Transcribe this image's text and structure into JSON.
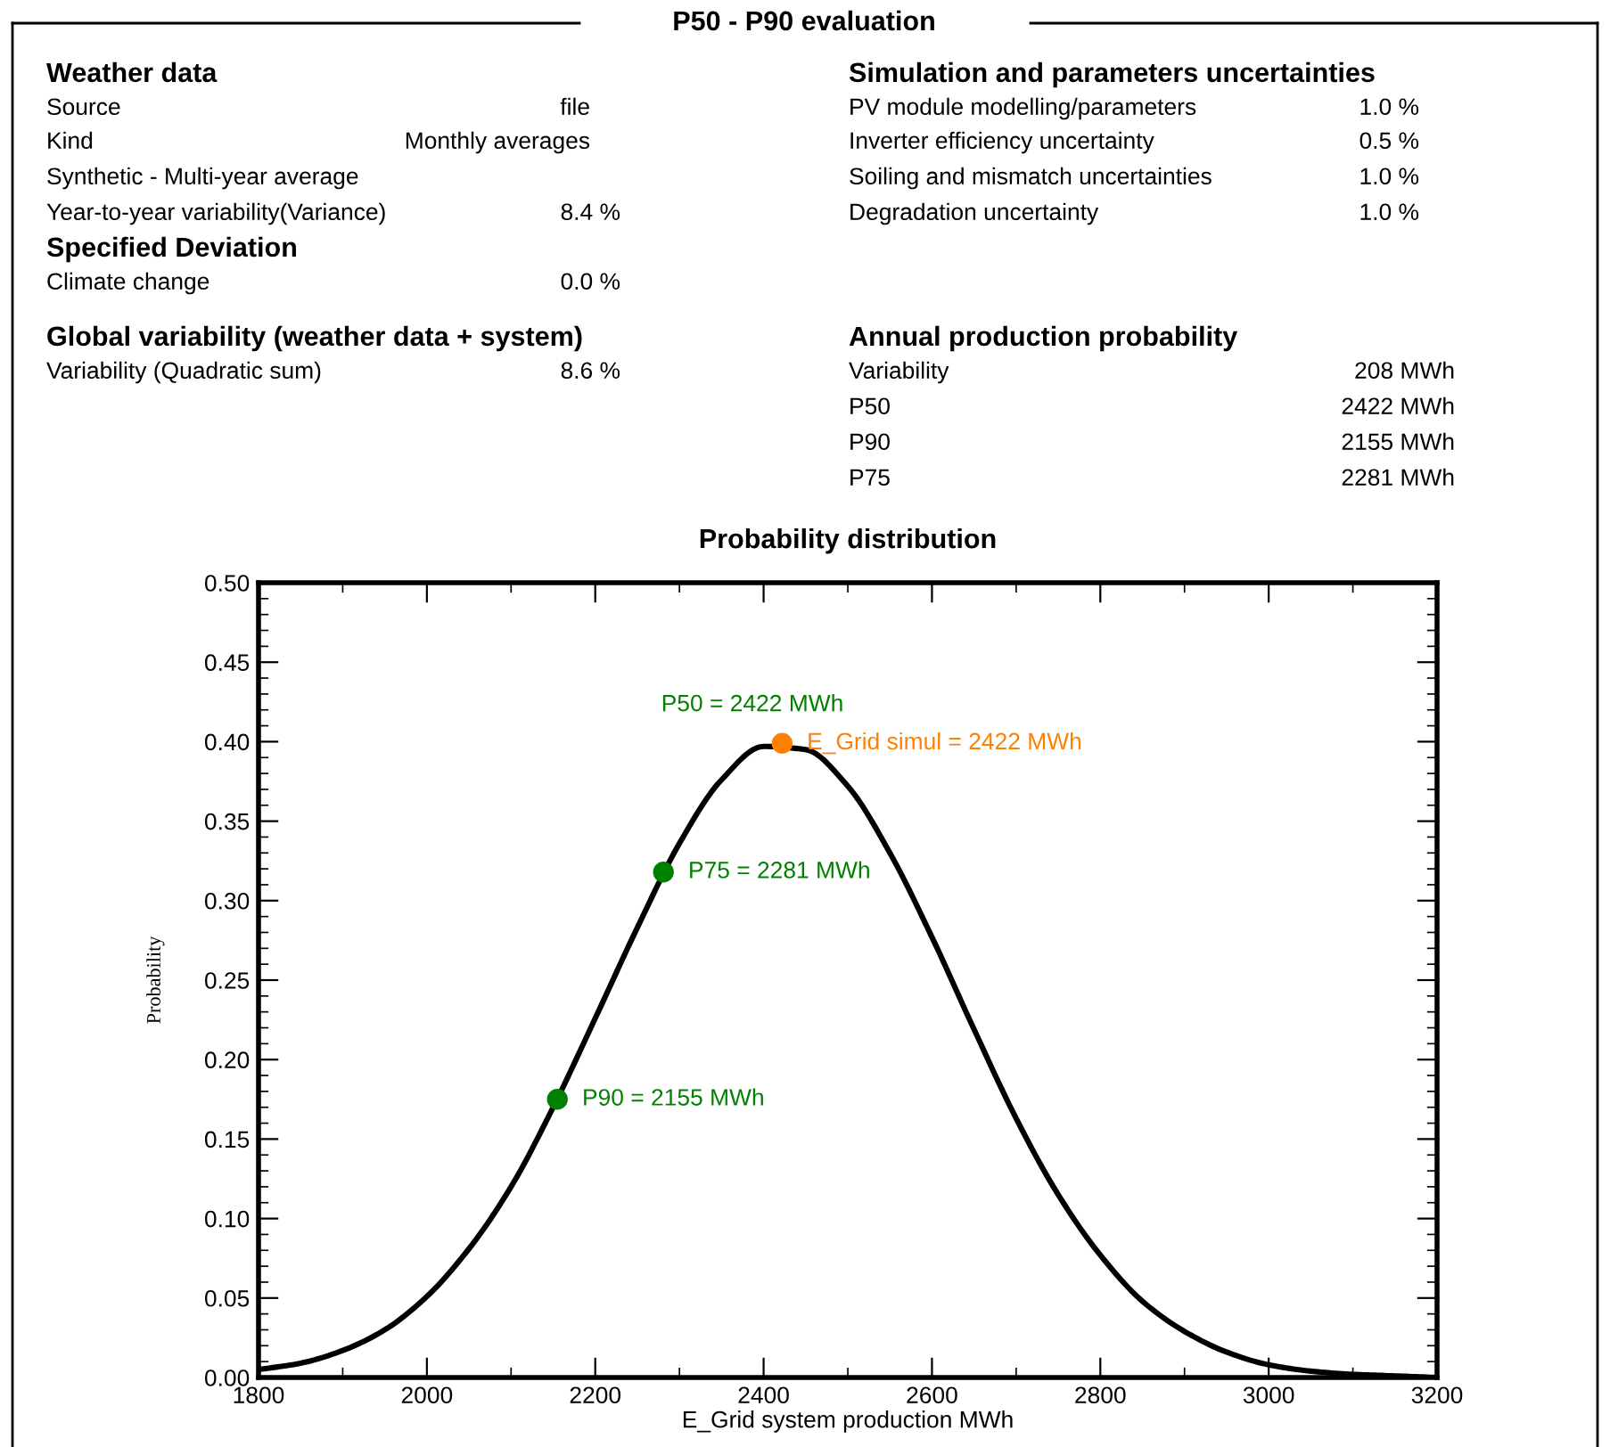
{
  "chart_data": [
    {
      "type": "other",
      "title": "P50 - P90 evaluation",
      "annotations": [
        "Weather data",
        "Source",
        "file",
        "Kind",
        "Monthly averages",
        "Synthetic - Multi-year average",
        "Year-to-year variability(Variance)",
        "8.4 %",
        "Specified Deviation",
        "Climate change",
        "0.0 %",
        "Global variability (weather data + system)",
        "Variability (Quadratic sum)",
        "8.6 %",
        "Simulation and parameters uncertainties",
        "PV module modelling/parameters",
        "1.0 %",
        "Inverter efficiency uncertainty",
        "0.5 %",
        "Soiling and mismatch uncertainties",
        "1.0 %",
        "Degradation uncertainty",
        "1.0 %",
        "Annual production probability",
        "Variability",
        "208 MWh",
        "P50",
        "2422 MWh",
        "P90",
        "2155 MWh",
        "P75",
        "2281 MWh"
      ]
    },
    {
      "type": "line",
      "title": "Probability distribution",
      "xlabel": "E_Grid system production MWh",
      "ylabel": "Probability",
      "xlim": [
        1800,
        3200
      ],
      "ylim": [
        0,
        0.5
      ],
      "xticks": [
        1800,
        {
          "value": 1900,
          "label": null
        },
        2000,
        {
          "value": 2100,
          "label": null
        },
        2200,
        {
          "value": 2300,
          "label": null
        },
        2400,
        {
          "value": 2500,
          "label": null
        },
        2600,
        {
          "value": 2700,
          "label": null
        },
        2800,
        {
          "value": 2900,
          "label": null
        },
        3000,
        {
          "value": 3100,
          "label": null
        },
        3200
      ],
      "yticks": [
        {
          "value": 0,
          "label": "0.00"
        },
        {
          "value": 0.01,
          "label": null
        },
        {
          "value": 0.02,
          "label": null
        },
        {
          "value": 0.03,
          "label": null
        },
        {
          "value": 0.04,
          "label": null
        },
        {
          "value": 0.05,
          "label": "0.05"
        },
        {
          "value": 0.06,
          "label": null
        },
        {
          "value": 0.07,
          "label": null
        },
        {
          "value": 0.08,
          "label": null
        },
        {
          "value": 0.09,
          "label": null
        },
        {
          "value": 0.1,
          "label": "0.10"
        },
        {
          "value": 0.11,
          "label": null
        },
        {
          "value": 0.12,
          "label": null
        },
        {
          "value": 0.13,
          "label": null
        },
        {
          "value": 0.14,
          "label": null
        },
        {
          "value": 0.15,
          "label": "0.15"
        },
        {
          "value": 0.16,
          "label": null
        },
        {
          "value": 0.17,
          "label": null
        },
        {
          "value": 0.18,
          "label": null
        },
        {
          "value": 0.19,
          "label": null
        },
        {
          "value": 0.2,
          "label": "0.20"
        },
        {
          "value": 0.21,
          "label": null
        },
        {
          "value": 0.22,
          "label": null
        },
        {
          "value": 0.23,
          "label": null
        },
        {
          "value": 0.24,
          "label": null
        },
        {
          "value": 0.25,
          "label": "0.25"
        },
        {
          "value": 0.26,
          "label": null
        },
        {
          "value": 0.27,
          "label": null
        },
        {
          "value": 0.28,
          "label": null
        },
        {
          "value": 0.29,
          "label": null
        },
        {
          "value": 0.3,
          "label": "0.30"
        },
        {
          "value": 0.31,
          "label": null
        },
        {
          "value": 0.32,
          "label": null
        },
        {
          "value": 0.33,
          "label": null
        },
        {
          "value": 0.34,
          "label": null
        },
        {
          "value": 0.35,
          "label": "0.35"
        },
        {
          "value": 0.36,
          "label": null
        },
        {
          "value": 0.37,
          "label": null
        },
        {
          "value": 0.38,
          "label": null
        },
        {
          "value": 0.39,
          "label": null
        },
        {
          "value": 0.4,
          "label": "0.40"
        },
        {
          "value": 0.41,
          "label": null
        },
        {
          "value": 0.42,
          "label": null
        },
        {
          "value": 0.43,
          "label": null
        },
        {
          "value": 0.44,
          "label": null
        },
        {
          "value": 0.45,
          "label": "0.45"
        },
        {
          "value": 0.46,
          "label": null
        },
        {
          "value": 0.47,
          "label": null
        },
        {
          "value": 0.48,
          "label": null
        },
        {
          "value": 0.49,
          "label": null
        },
        {
          "value": 0.5,
          "label": "0.50"
        }
      ],
      "grid": false,
      "legend": false,
      "annotations": [
        {
          "text": "P50 = 2422 MWh",
          "x": 2422,
          "y": 0.399
        },
        {
          "text": "E_Grid simul = 2422 MWh",
          "x": 2422,
          "y": 0.399
        },
        {
          "text": "P75 = 2281 MWh",
          "x": 2281,
          "y": 0.318
        },
        {
          "text": "P90 = 2155 MWh",
          "x": 2155,
          "y": 0.175
        }
      ],
      "series": [
        {
          "type": "line",
          "color": "#000000",
          "marker": "none",
          "line_style": "solid",
          "x": [
            1800,
            1850,
            1900,
            1950,
            2000,
            2050,
            2100,
            2150,
            2200,
            2250,
            2300,
            2350,
            2400,
            2450,
            2500,
            2550,
            2600,
            2650,
            2700,
            2750,
            2800,
            2850,
            2900,
            2950,
            3000,
            3050,
            3100,
            3150,
            3200
          ],
          "values": [
            0.005,
            0.009,
            0.017,
            0.03,
            0.051,
            0.081,
            0.12,
            0.17,
            0.226,
            0.283,
            0.336,
            0.376,
            0.397,
            0.395,
            0.372,
            0.33,
            0.277,
            0.219,
            0.163,
            0.115,
            0.077,
            0.048,
            0.029,
            0.016,
            0.008,
            0.004,
            0.002,
            0.001,
            0.0
          ]
        },
        {
          "type": "scatter",
          "color": "#008000",
          "marker": "circle",
          "x": [
            2281,
            2155
          ],
          "values": [
            0.318,
            0.175
          ]
        },
        {
          "type": "scatter",
          "color": "#ff8000",
          "marker": "circle",
          "x": [
            2422
          ],
          "values": [
            0.399
          ]
        }
      ]
    }
  ]
}
